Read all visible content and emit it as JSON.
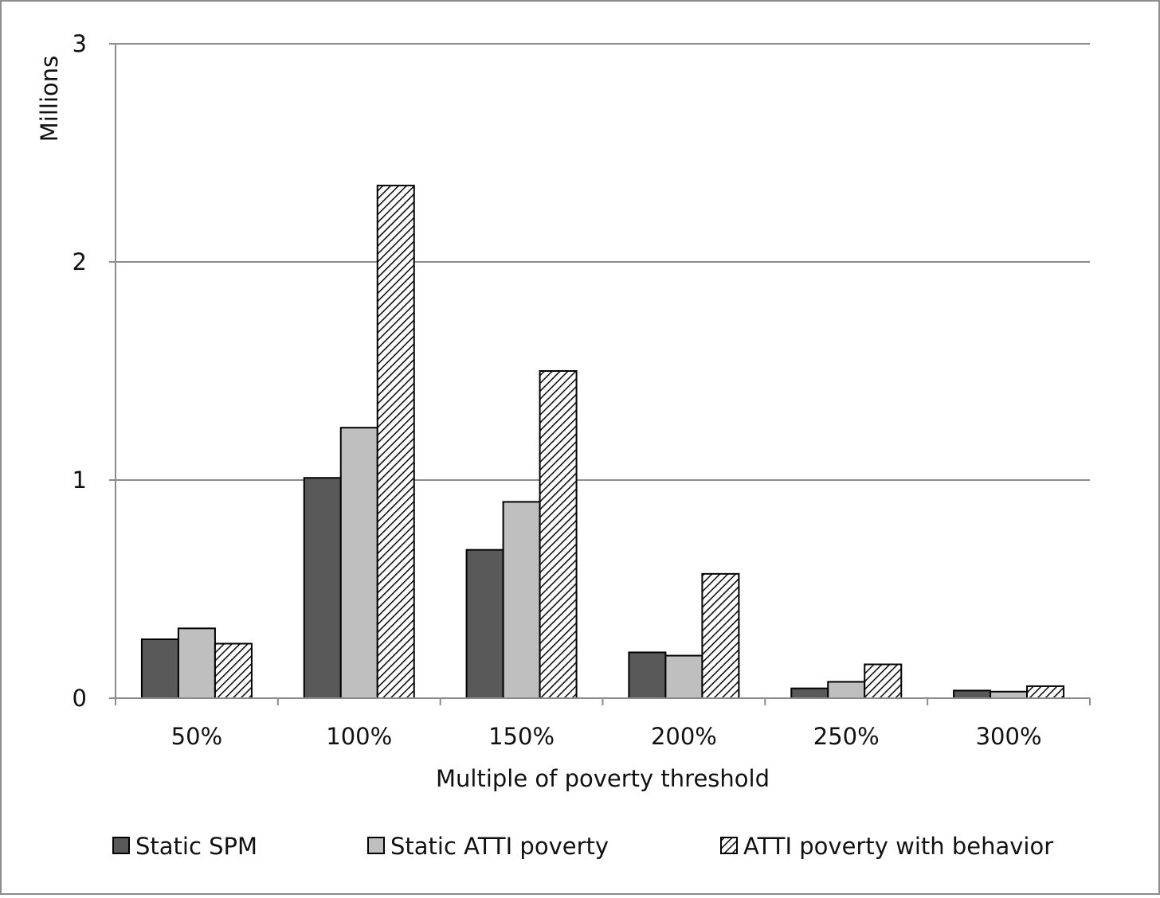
{
  "chart_data": {
    "type": "bar",
    "title": "",
    "xlabel": "Multiple of poverty threshold",
    "ylabel": "Millions",
    "ylim": [
      0,
      3
    ],
    "yticks": [
      0,
      1,
      2,
      3
    ],
    "grid": true,
    "legend_position": "bottom",
    "categories": [
      "50%",
      "100%",
      "150%",
      "200%",
      "250%",
      "300%"
    ],
    "series": [
      {
        "name": "Static SPM",
        "fill": "#595959",
        "pattern": "solid",
        "values": [
          0.27,
          1.01,
          0.68,
          0.21,
          0.045,
          0.035
        ]
      },
      {
        "name": "Static ATTI poverty",
        "fill": "#bfbfbf",
        "pattern": "solid",
        "values": [
          0.32,
          1.24,
          0.9,
          0.195,
          0.075,
          0.03
        ]
      },
      {
        "name": "ATTI poverty with behavior",
        "fill": "#ffffff",
        "pattern": "hatch",
        "values": [
          0.25,
          2.35,
          1.5,
          0.57,
          0.155,
          0.055
        ]
      }
    ]
  }
}
